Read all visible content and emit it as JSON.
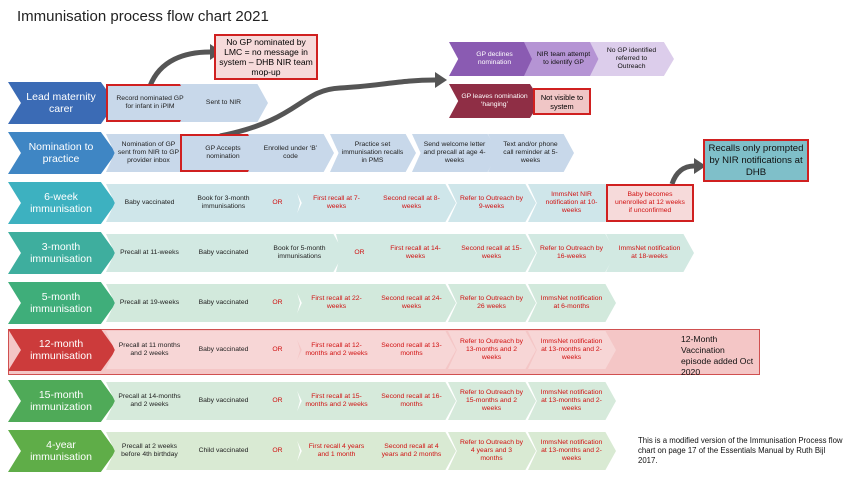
{
  "title": "Immunisation process flow chart 2021",
  "callouts": {
    "no_gp": "No GP nominated by LMC = no message in system – DHB NIR team mop-up",
    "recalls": "Recalls only prompted by NIR notifications at DHB"
  },
  "branch_top": [
    "GP declines nomination",
    "NIR team attempt to identify GP",
    "No GP identified referred to Outreach"
  ],
  "branch_mid": [
    "GP leaves nomination ‘hanging’",
    "Not visible to system"
  ],
  "stages": [
    {
      "label": "Lead maternity carer",
      "steps": [
        "Record nominated GP for infant in iPIM",
        "Sent to NIR"
      ]
    },
    {
      "label": "Nomination to practice",
      "steps": [
        "Nomination of GP sent from NIR to GP provider inbox",
        "GP Accepts nomination",
        "Enrolled under ‘B’ code",
        "Practice set immunisation recalls in PMS",
        "Send welcome letter and precall at age 4-weeks",
        "Text and/or phone call reminder at 5-weeks"
      ]
    },
    {
      "label": "6-week immunisation",
      "steps": [
        "Baby vaccinated",
        "Book for 3-month immunisations",
        "OR",
        "First recall at 7-weeks",
        "Second recall at 8-weeks",
        "Refer to Outreach by 9-weeks",
        "ImmsNet NIR notification at 10- weeks",
        "Baby becomes unenrolled at 12 weeks if unconfirmed"
      ]
    },
    {
      "label": "3-month immunisation",
      "steps": [
        "Precall at 11-weeks",
        "Baby vaccinated",
        "Book for 5-month immunisations",
        "OR",
        "First recall at 14-weeks",
        "Second recall at 15-weeks",
        "Refer to Outreach by 16-weeks",
        "ImmsNet notification at 18-weeks"
      ]
    },
    {
      "label": "5-month immunisation",
      "steps": [
        "Precall at 19-weeks",
        "Baby vaccinated",
        "OR",
        "First recall at 22-weeks",
        "Second recall at 24-weeks",
        "Refer to Outreach by 26 weeks",
        "ImmsNet notification at 6-months"
      ]
    },
    {
      "label": "12-month immunisation",
      "steps": [
        "Precall at 11 months and 2 weeks",
        "Baby vaccinated",
        "OR",
        "First recall at 12-months and 2 weeks",
        "Second recall at 13-months",
        "Refer to Outreach by 13-months and 2 weeks",
        "ImmsNet notification at 13-months and 2-weeks"
      ]
    },
    {
      "label": "15-month immunization",
      "steps": [
        "Precall at 14-months and 2 weeks",
        "Baby vaccinated",
        "OR",
        "First recall at 15-months and 2 weeks",
        "Second recall at 16-months",
        "Refer to Outreach by 15-months and 2 weeks",
        "ImmsNet notification at 13-months and 2-weeks"
      ]
    },
    {
      "label": "4-year immunisation",
      "steps": [
        "Precall at 2 weeks before 4th birthday",
        "Child vaccinated",
        "OR",
        "First recall 4 years and 1 month",
        "Second recall at 4 years and 2 months",
        "Refer to Outreach by 4 years and 3 months",
        "ImmsNet notification at 13-months and 2-weeks"
      ]
    }
  ],
  "twelve_month_note": "12-Month Vaccination episode added Oct 2020",
  "source_note": "This is a modified version of the Immunisation Process flow chart on page 17 of the Essentials Manual by Ruth Bijl 2017."
}
